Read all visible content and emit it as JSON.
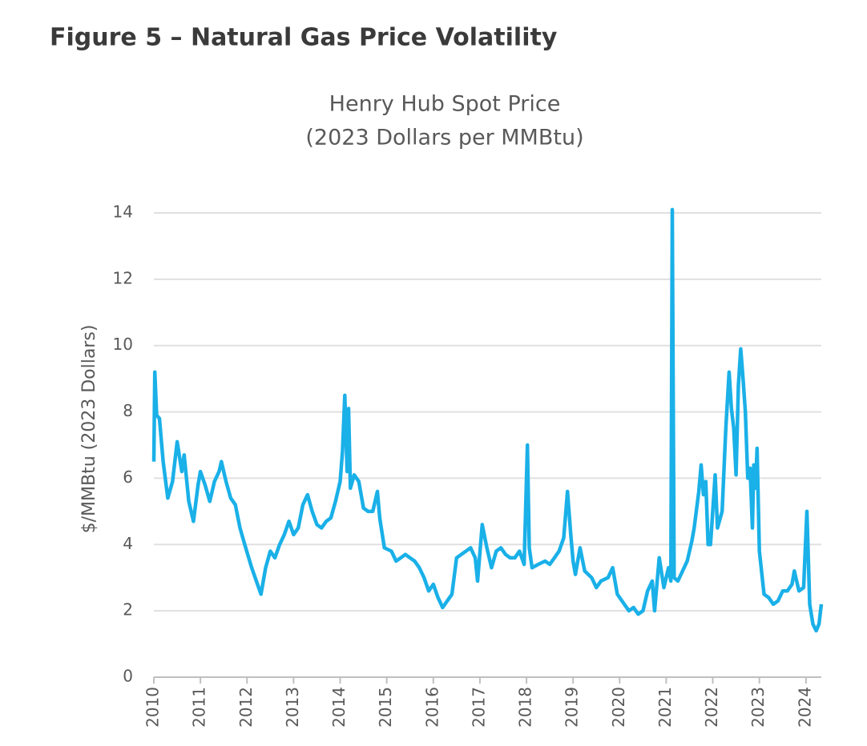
{
  "figure_title": "Figure 5 – Natural Gas Price Volatility",
  "chart_data": {
    "type": "line",
    "title": "Henry Hub Spot Price",
    "subtitle": "(2023 Dollars per MMBtu)",
    "y_label": "$/MMBtu (2023 Dollars)",
    "xlim": [
      2010,
      2024.33
    ],
    "xticks": [
      2010,
      2011,
      2012,
      2013,
      2014,
      2015,
      2016,
      2017,
      2018,
      2019,
      2020,
      2021,
      2022,
      2023,
      2024
    ],
    "ylim": [
      0,
      14
    ],
    "yticks": [
      0,
      2,
      4,
      6,
      8,
      10,
      12,
      14
    ],
    "grid": true,
    "x": [
      2010.0,
      2010.02,
      2010.06,
      2010.12,
      2010.2,
      2010.3,
      2010.4,
      2010.5,
      2010.6,
      2010.65,
      2010.75,
      2010.85,
      2010.95,
      2011.0,
      2011.1,
      2011.2,
      2011.3,
      2011.4,
      2011.45,
      2011.55,
      2011.65,
      2011.75,
      2011.85,
      2011.95,
      2012.1,
      2012.2,
      2012.3,
      2012.4,
      2012.5,
      2012.6,
      2012.7,
      2012.8,
      2012.9,
      2013.0,
      2013.1,
      2013.2,
      2013.3,
      2013.4,
      2013.5,
      2013.6,
      2013.7,
      2013.8,
      2013.9,
      2014.0,
      2014.05,
      2014.1,
      2014.15,
      2014.18,
      2014.22,
      2014.3,
      2014.4,
      2014.5,
      2014.6,
      2014.7,
      2014.8,
      2014.85,
      2014.95,
      2015.1,
      2015.2,
      2015.3,
      2015.4,
      2015.5,
      2015.6,
      2015.7,
      2015.8,
      2015.9,
      2016.0,
      2016.1,
      2016.2,
      2016.3,
      2016.4,
      2016.5,
      2016.6,
      2016.7,
      2016.8,
      2016.9,
      2016.95,
      2017.05,
      2017.15,
      2017.25,
      2017.35,
      2017.45,
      2017.55,
      2017.65,
      2017.75,
      2017.85,
      2017.95,
      2018.02,
      2018.06,
      2018.12,
      2018.25,
      2018.4,
      2018.5,
      2018.6,
      2018.7,
      2018.8,
      2018.88,
      2018.95,
      2019.0,
      2019.05,
      2019.15,
      2019.25,
      2019.4,
      2019.5,
      2019.6,
      2019.75,
      2019.85,
      2019.95,
      2020.1,
      2020.2,
      2020.3,
      2020.4,
      2020.5,
      2020.6,
      2020.7,
      2020.75,
      2020.85,
      2020.95,
      2021.05,
      2021.1,
      2021.13,
      2021.17,
      2021.25,
      2021.35,
      2021.45,
      2021.55,
      2021.6,
      2021.7,
      2021.75,
      2021.8,
      2021.85,
      2021.9,
      2021.95,
      2022.05,
      2022.1,
      2022.2,
      2022.28,
      2022.35,
      2022.4,
      2022.45,
      2022.5,
      2022.55,
      2022.6,
      2022.65,
      2022.7,
      2022.75,
      2022.8,
      2022.85,
      2022.88,
      2022.92,
      2022.95,
      2023.0,
      2023.1,
      2023.2,
      2023.3,
      2023.4,
      2023.5,
      2023.6,
      2023.7,
      2023.75,
      2023.85,
      2023.95,
      2024.02,
      2024.08,
      2024.15,
      2024.22,
      2024.28,
      2024.33
    ],
    "series": [
      {
        "name": "Henry Hub Spot Price",
        "color": "#1ab0e8",
        "values": [
          6.5,
          9.2,
          7.9,
          7.8,
          6.5,
          5.4,
          5.9,
          7.1,
          6.2,
          6.7,
          5.3,
          4.7,
          5.8,
          6.2,
          5.8,
          5.3,
          5.9,
          6.2,
          6.5,
          5.9,
          5.4,
          5.2,
          4.5,
          4.0,
          3.3,
          2.9,
          2.5,
          3.3,
          3.8,
          3.6,
          4.0,
          4.3,
          4.7,
          4.3,
          4.5,
          5.2,
          5.5,
          5.0,
          4.6,
          4.5,
          4.7,
          4.8,
          5.3,
          5.9,
          6.8,
          8.5,
          6.2,
          8.1,
          5.7,
          6.1,
          5.9,
          5.1,
          5.0,
          5.0,
          5.6,
          4.8,
          3.9,
          3.8,
          3.5,
          3.6,
          3.7,
          3.6,
          3.5,
          3.3,
          3.0,
          2.6,
          2.8,
          2.4,
          2.1,
          2.3,
          2.5,
          3.6,
          3.7,
          3.8,
          3.9,
          3.6,
          2.9,
          4.6,
          3.9,
          3.3,
          3.8,
          3.9,
          3.7,
          3.6,
          3.6,
          3.8,
          3.4,
          7.0,
          3.9,
          3.3,
          3.4,
          3.5,
          3.4,
          3.6,
          3.8,
          4.2,
          5.6,
          4.3,
          3.5,
          3.1,
          3.9,
          3.2,
          3.0,
          2.7,
          2.9,
          3.0,
          3.3,
          2.5,
          2.2,
          2.0,
          2.1,
          1.9,
          2.0,
          2.6,
          2.9,
          2.0,
          3.6,
          2.7,
          3.3,
          2.9,
          14.1,
          3.0,
          2.9,
          3.2,
          3.5,
          4.1,
          4.5,
          5.6,
          6.4,
          5.5,
          5.9,
          4.0,
          4.0,
          6.1,
          4.5,
          5.0,
          7.5,
          9.2,
          8.1,
          7.5,
          6.1,
          8.8,
          9.9,
          9.0,
          8.0,
          6.0,
          6.3,
          4.5,
          6.4,
          5.7,
          6.9,
          3.8,
          2.5,
          2.4,
          2.2,
          2.3,
          2.6,
          2.6,
          2.8,
          3.2,
          2.6,
          2.7,
          5.0,
          2.2,
          1.6,
          1.4,
          1.6,
          2.2
        ]
      }
    ]
  }
}
